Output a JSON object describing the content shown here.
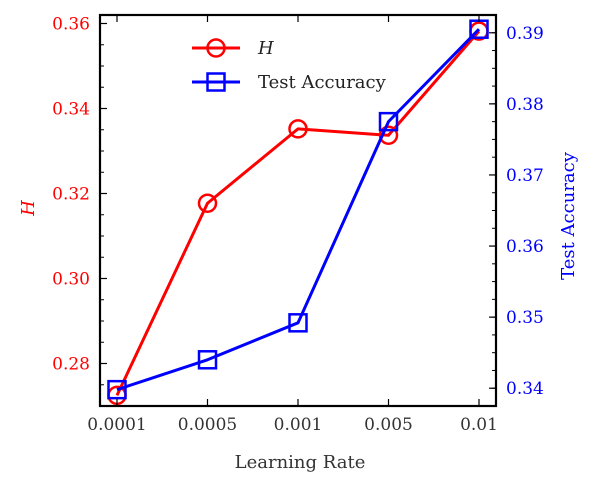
{
  "chart_data": {
    "type": "line",
    "title": "",
    "xlabel": "Learning Rate",
    "categories": [
      "0.0001",
      "0.0005",
      "0.001",
      "0.005",
      "0.01"
    ],
    "y_left": {
      "label": "H",
      "color": "#ff0000",
      "ylim": [
        0.27,
        0.362
      ],
      "ticks": [
        0.28,
        0.3,
        0.32,
        0.34,
        0.36
      ],
      "tick_labels": [
        "0.28",
        "0.30",
        "0.32",
        "0.34",
        "0.36"
      ]
    },
    "y_right": {
      "label": "Test Accuracy",
      "color": "#0000ff",
      "ylim": [
        0.3375,
        0.3925
      ],
      "ticks": [
        0.34,
        0.35,
        0.36,
        0.37,
        0.38,
        0.39
      ],
      "tick_labels": [
        "0.34",
        "0.35",
        "0.36",
        "0.37",
        "0.38",
        "0.39"
      ]
    },
    "series": [
      {
        "name": "H",
        "axis": "left",
        "color": "#ff0000",
        "marker": "circle",
        "values": [
          0.2725,
          0.3177,
          0.3352,
          0.3337,
          0.3582
        ]
      },
      {
        "name": "Test Accuracy",
        "axis": "right",
        "color": "#0000ff",
        "marker": "square",
        "values": [
          0.3398,
          0.344,
          0.3492,
          0.3775,
          0.3905
        ]
      }
    ],
    "legend": {
      "placement": "top-center"
    },
    "grid": false
  }
}
